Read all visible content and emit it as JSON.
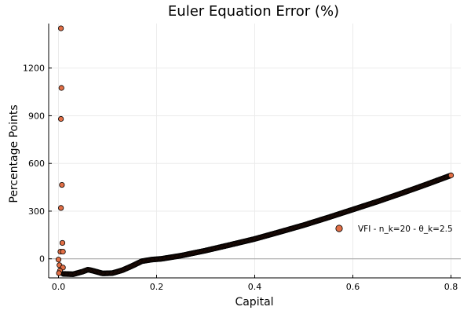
{
  "chart_data": {
    "type": "scatter",
    "title": "Euler Equation Error (%)",
    "xlabel": "Capital",
    "ylabel": "Percentage Points",
    "xlim": [
      -0.02,
      0.82
    ],
    "ylim": [
      -120,
      1480
    ],
    "x_ticks": [
      0.0,
      0.2,
      0.4,
      0.6,
      0.8
    ],
    "x_tick_labels": [
      "0.0",
      "0.2",
      "0.4",
      "0.6",
      "0.8"
    ],
    "y_ticks": [
      0,
      300,
      600,
      900,
      1200
    ],
    "y_tick_labels": [
      "0",
      "300",
      "600",
      "900",
      "1200"
    ],
    "grid": true,
    "zero_line": true,
    "legend_position": "right",
    "colors": {
      "marker_fill": "#e26f46",
      "marker_edge": "#000000",
      "grid": "#ebebeb",
      "zero_line": "#aaaaaa"
    },
    "series": [
      {
        "name": "VFI - n_k=20 - θ_k=2.5",
        "outliers": [
          {
            "x": 0.005,
            "y": 1450
          },
          {
            "x": 0.006,
            "y": 1075
          },
          {
            "x": 0.005,
            "y": 880
          },
          {
            "x": 0.007,
            "y": 465
          },
          {
            "x": 0.005,
            "y": 320
          },
          {
            "x": 0.008,
            "y": 100
          },
          {
            "x": 0.004,
            "y": 45
          },
          {
            "x": 0.009,
            "y": 45
          },
          {
            "x": 0.0,
            "y": -5
          },
          {
            "x": 0.002,
            "y": -40
          },
          {
            "x": 0.009,
            "y": -55
          },
          {
            "x": 0.003,
            "y": -75
          },
          {
            "x": 0.001,
            "y": -90
          }
        ],
        "curve": [
          {
            "x": 0.01,
            "y": -95
          },
          {
            "x": 0.03,
            "y": -97
          },
          {
            "x": 0.05,
            "y": -80
          },
          {
            "x": 0.06,
            "y": -68
          },
          {
            "x": 0.07,
            "y": -75
          },
          {
            "x": 0.09,
            "y": -92
          },
          {
            "x": 0.11,
            "y": -90
          },
          {
            "x": 0.13,
            "y": -72
          },
          {
            "x": 0.15,
            "y": -45
          },
          {
            "x": 0.17,
            "y": -15
          },
          {
            "x": 0.19,
            "y": -5
          },
          {
            "x": 0.21,
            "y": 0
          },
          {
            "x": 0.25,
            "y": 20
          },
          {
            "x": 0.3,
            "y": 52
          },
          {
            "x": 0.35,
            "y": 88
          },
          {
            "x": 0.4,
            "y": 125
          },
          {
            "x": 0.45,
            "y": 168
          },
          {
            "x": 0.5,
            "y": 212
          },
          {
            "x": 0.55,
            "y": 260
          },
          {
            "x": 0.6,
            "y": 310
          },
          {
            "x": 0.65,
            "y": 360
          },
          {
            "x": 0.7,
            "y": 413
          },
          {
            "x": 0.75,
            "y": 468
          },
          {
            "x": 0.8,
            "y": 525
          }
        ],
        "curve_sample_count": 400
      }
    ]
  }
}
